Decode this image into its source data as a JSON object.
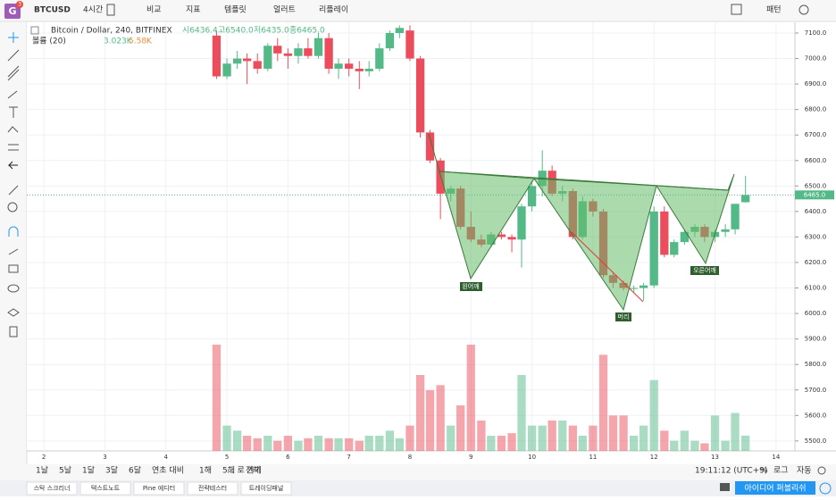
{
  "toolbar": {
    "logo_badge": "3",
    "symbol": "BTCUSD",
    "interval": "4시간",
    "compare": "비교",
    "indicators": "지표",
    "templates": "템플릿",
    "alert": "얼러트",
    "replay": "리플레이",
    "pattern": "패턴"
  },
  "chart_data": {
    "type": "candlestick",
    "title": "Bitcoin / Dollar, 240, BITFINEX",
    "ohlc_legend": [
      "시6436.4",
      "고6540.0",
      "저6435.0",
      "종6465.0"
    ],
    "x": [
      4.83,
      5,
      5.17,
      5.33,
      5.5,
      5.67,
      5.83,
      6,
      6.17,
      6.33,
      6.5,
      6.67,
      6.83,
      7,
      7.17,
      7.33,
      7.5,
      7.67,
      7.83,
      8,
      8.17,
      8.33,
      8.5,
      8.67,
      8.83,
      9,
      9.17,
      9.33,
      9.5,
      9.67,
      9.83,
      10,
      10.17,
      10.33,
      10.5,
      10.67,
      10.83,
      11,
      11.17,
      11.33,
      11.5,
      11.67,
      11.83,
      12,
      12.17,
      12.33,
      12.5,
      12.67,
      12.83,
      13,
      13.17,
      13.33,
      13.5
    ],
    "open": [
      7090,
      6930,
      6980,
      7000,
      6990,
      6960,
      7050,
      7020,
      7010,
      7040,
      7010,
      7080,
      6960,
      6980,
      6960,
      6950,
      6960,
      7040,
      7100,
      7110,
      7000,
      6710,
      6600,
      6470,
      6490,
      6340,
      6290,
      6270,
      6310,
      6300,
      6290,
      6420,
      6500,
      6560,
      6470,
      6480,
      6300,
      6440,
      6400,
      6150,
      6120,
      6100,
      6100,
      6110,
      6400,
      6230,
      6280,
      6320,
      6340,
      6300,
      6320,
      6330,
      6436.4
    ],
    "high": [
      7110,
      7000,
      7030,
      7020,
      7020,
      7060,
      7080,
      7040,
      7060,
      7080,
      7100,
      7100,
      7000,
      7000,
      6990,
      6990,
      7060,
      7110,
      7130,
      7130,
      7010,
      6720,
      6610,
      6500,
      6500,
      6400,
      6310,
      6320,
      6320,
      6310,
      6430,
      6520,
      6640,
      6580,
      6500,
      6490,
      6460,
      6450,
      6410,
      6160,
      6130,
      6110,
      6120,
      6420,
      6420,
      6290,
      6330,
      6350,
      6350,
      6330,
      6350,
      6430,
      6540
    ],
    "low": [
      6920,
      6920,
      6960,
      6900,
      6940,
      6950,
      6990,
      6960,
      6980,
      7000,
      7000,
      6940,
      6920,
      6930,
      6880,
      6930,
      6950,
      7030,
      7080,
      6990,
      6690,
      6590,
      6370,
      6440,
      6330,
      6280,
      6260,
      6260,
      6290,
      6240,
      6180,
      6400,
      6460,
      6460,
      6440,
      6290,
      6290,
      6380,
      6140,
      6100,
      6090,
      6080,
      6050,
      6100,
      6220,
      6220,
      6270,
      6300,
      6280,
      6280,
      6300,
      6310,
      6435
    ],
    "close": [
      6930,
      6980,
      7000,
      6990,
      6960,
      7050,
      7020,
      7010,
      7040,
      7010,
      7080,
      6960,
      6980,
      6960,
      6950,
      6960,
      7040,
      7100,
      7120,
      7000,
      6710,
      6600,
      6470,
      6490,
      6340,
      6290,
      6270,
      6310,
      6300,
      6290,
      6420,
      6500,
      6560,
      6470,
      6480,
      6300,
      6440,
      6400,
      6150,
      6120,
      6100,
      6100,
      6110,
      6400,
      6230,
      6280,
      6320,
      6340,
      6300,
      6320,
      6330,
      6430,
      6465
    ],
    "up_color": "#53b987",
    "down_color": "#eb4d5c",
    "volume": {
      "name": "볼륨 (20)",
      "value_label": "3.023K",
      "ma_label": "5.58K",
      "values": [
        21,
        5,
        4,
        3,
        2.5,
        3,
        2,
        3,
        2,
        2.5,
        3,
        2.5,
        2.5,
        2.5,
        2,
        3,
        3,
        4,
        2.5,
        5,
        15,
        12,
        13,
        5,
        9,
        21,
        6,
        3,
        3,
        3.5,
        15,
        5,
        5,
        6,
        6,
        5,
        3,
        5,
        19,
        7,
        7,
        3,
        5,
        14,
        4,
        2,
        4,
        2,
        1.5,
        7,
        2,
        7.5,
        3.023
      ]
    },
    "xlim": [
      1.72,
      14.31
    ],
    "xticks": [
      2,
      3,
      4,
      5,
      6,
      7,
      8,
      9,
      10,
      11,
      12,
      13,
      14
    ],
    "ylim": [
      5461,
      7142
    ],
    "yticks": [
      {
        "value": 5500,
        "label": "5500.0"
      },
      {
        "value": 5600,
        "label": "5600.0"
      },
      {
        "value": 5700,
        "label": "5700.0"
      },
      {
        "value": 5800,
        "label": "5800.0"
      },
      {
        "value": 5900,
        "label": "5900.0"
      },
      {
        "value": 6000,
        "label": "6000.0"
      },
      {
        "value": 6100,
        "label": "6100.0"
      },
      {
        "value": 6200,
        "label": "6200.0"
      },
      {
        "value": 6300,
        "label": "6300.0"
      },
      {
        "value": 6400,
        "label": "6400.0"
      },
      {
        "value": 6500,
        "label": "6500.0"
      },
      {
        "value": 6600,
        "label": "6600.0"
      },
      {
        "value": 6700,
        "label": "6700.0"
      },
      {
        "value": 6800,
        "label": "6800.0"
      },
      {
        "value": 6900,
        "label": "6900.0"
      },
      {
        "value": 7000,
        "label": "7000.0"
      },
      {
        "value": 7100,
        "label": "7100.0"
      }
    ],
    "last_price": {
      "value": 6465,
      "label": "6465.0"
    },
    "grid": true,
    "annotations": [
      "왼어깨",
      "머리",
      "오른어깨"
    ]
  },
  "bottom_bar": {
    "ranges": [
      "1날",
      "5날",
      "1달",
      "3달",
      "6달",
      "연초 대비",
      "1해",
      "5해",
      "전체"
    ],
    "goto": "... 로 가기",
    "clock": "19:11:12 (UTC+9)",
    "percent": "%",
    "log": "로그",
    "auto": "자동"
  },
  "footer": {
    "tabs": [
      "스탁 스크리너",
      "텍스트노트",
      "Pine 에디터",
      "전략테스터",
      "트레이딩패널"
    ],
    "publish": "아이디어 퍼블리쉬"
  }
}
